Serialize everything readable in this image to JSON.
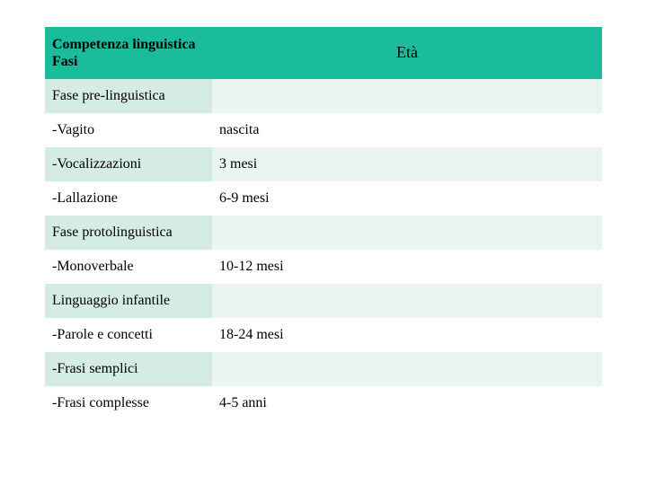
{
  "table": {
    "header": {
      "phase_line1": "Competenza linguistica",
      "phase_line2": "Fasi",
      "age": "Età"
    },
    "rows": [
      {
        "phase": "Fase pre-linguistica",
        "age": "",
        "band": "light"
      },
      {
        "phase": "-Vagito",
        "age": "nascita",
        "band": "white"
      },
      {
        "phase": "-Vocalizzazioni",
        "age": "3 mesi",
        "band": "light"
      },
      {
        "phase": "-Lallazione",
        "age": "6-9 mesi",
        "band": "white"
      },
      {
        "phase": "Fase protolinguistica",
        "age": "",
        "band": "light"
      },
      {
        "phase": "-Monoverbale",
        "age": "10-12 mesi",
        "band": "white"
      },
      {
        "phase": "Linguaggio infantile",
        "age": "",
        "band": "light"
      },
      {
        "phase": "-Parole e concetti",
        "age": "18-24 mesi",
        "band": "white"
      },
      {
        "phase": "-Frasi semplici",
        "age": "",
        "band": "light"
      },
      {
        "phase": "-Frasi complesse",
        "age": "4-5 anni",
        "band": "white"
      }
    ]
  },
  "colors": {
    "header_bg": "#1abc9c",
    "band_light": "#d4ece2",
    "band_light_age": "#eaf5f0",
    "band_white": "#ffffff",
    "text": "#000000"
  }
}
